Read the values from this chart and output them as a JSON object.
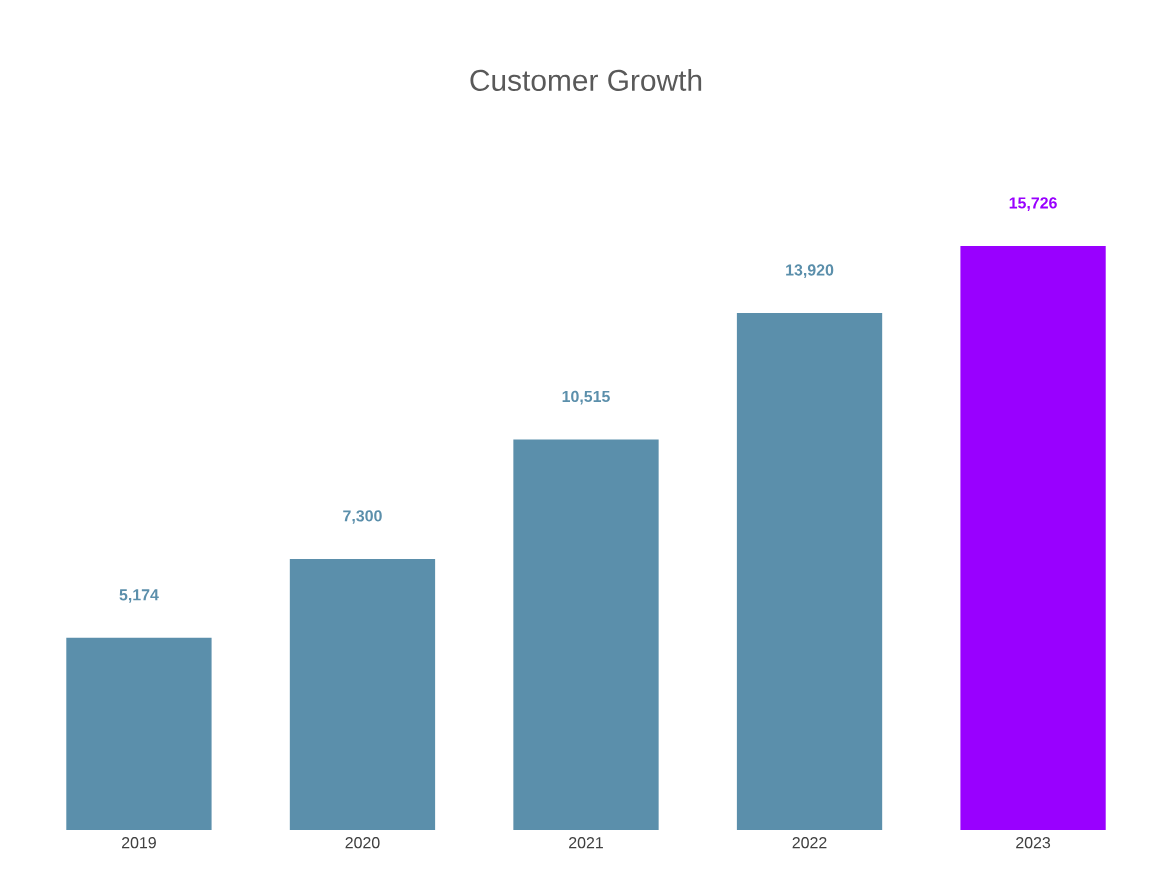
{
  "chart_data": {
    "type": "bar",
    "title": "Customer Growth",
    "categories": [
      "2019",
      "2020",
      "2021",
      "2022",
      "2023"
    ],
    "values": [
      5174,
      7300,
      10515,
      13920,
      15726
    ],
    "colors": [
      "#5b8fab",
      "#5b8fab",
      "#5b8fab",
      "#5b8fab",
      "#9900ff"
    ],
    "value_labels": [
      "5,174",
      "7,300",
      "10,515",
      "13,920",
      "15,726"
    ]
  }
}
